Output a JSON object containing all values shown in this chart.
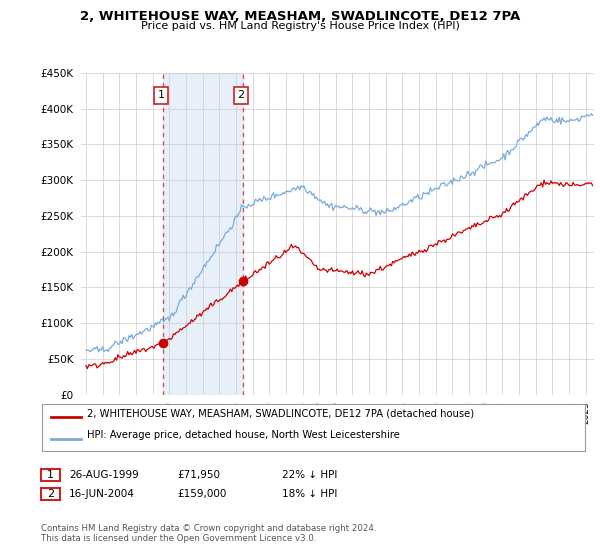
{
  "title": "2, WHITEHOUSE WAY, MEASHAM, SWADLINCOTE, DE12 7PA",
  "subtitle": "Price paid vs. HM Land Registry's House Price Index (HPI)",
  "legend_line1": "2, WHITEHOUSE WAY, MEASHAM, SWADLINCOTE, DE12 7PA (detached house)",
  "legend_line2": "HPI: Average price, detached house, North West Leicestershire",
  "transaction1_date": "26-AUG-1999",
  "transaction1_price": "£71,950",
  "transaction1_hpi": "22% ↓ HPI",
  "transaction1_year": 1999.65,
  "transaction1_value": 71950,
  "transaction2_date": "16-JUN-2004",
  "transaction2_price": "£159,000",
  "transaction2_hpi": "18% ↓ HPI",
  "transaction2_year": 2004.45,
  "transaction2_value": 159000,
  "copyright_text": "Contains HM Land Registry data © Crown copyright and database right 2024.\nThis data is licensed under the Open Government Licence v3.0.",
  "hpi_color": "#7aabdc",
  "price_color": "#cc0000",
  "shade_color": "#ddeeff",
  "background_color": "#ffffff",
  "ylim": [
    0,
    450000
  ],
  "xlim_start": 1994.7,
  "xlim_end": 2025.5
}
